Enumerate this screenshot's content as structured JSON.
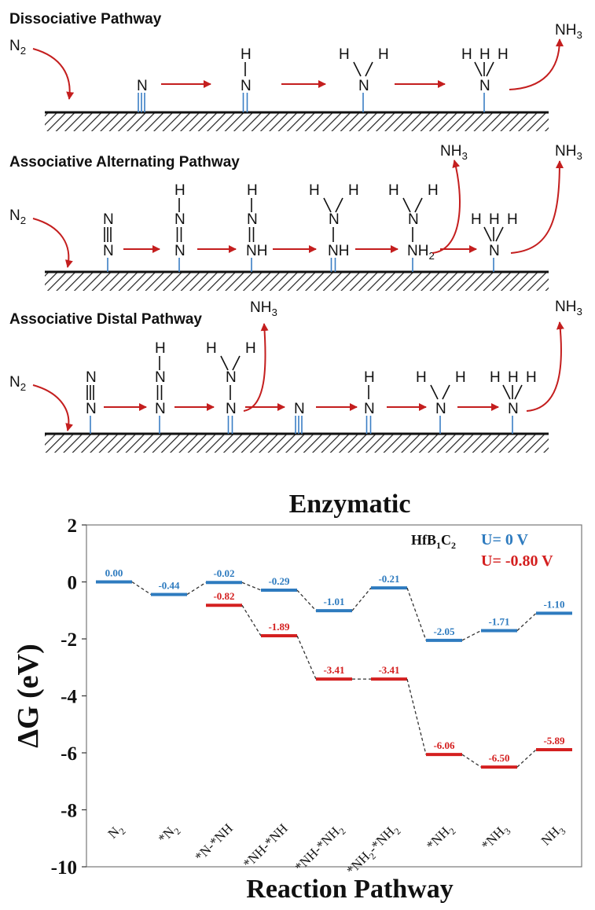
{
  "schemes": [
    {
      "title": "Dissociative Pathway",
      "reactant": "N2",
      "species": [
        {
          "below": "N",
          "bond": "triple",
          "above": []
        },
        {
          "below": "N",
          "bond": "double",
          "above": [
            "H"
          ]
        },
        {
          "below": "N",
          "bond": "single",
          "above": [
            "H",
            "H"
          ]
        },
        {
          "below": "N",
          "bond": "single",
          "above": [
            "H",
            "H",
            "H"
          ]
        }
      ],
      "releases": [
        {
          "after_species": 3,
          "label": "NH3"
        }
      ]
    },
    {
      "title": "Associative Alternating Pathway",
      "reactant": "N2",
      "species": [
        {
          "below": "N",
          "bond": "single",
          "chain": [
            {
              "atom": "N",
              "bond": "triple"
            }
          ],
          "above": []
        },
        {
          "below": "N",
          "bond": "single",
          "chain": [
            {
              "atom": "N",
              "bond": "double"
            }
          ],
          "above": [
            "H"
          ]
        },
        {
          "below": "NH",
          "bond": "single",
          "chain": [
            {
              "atom": "N",
              "bond": "double"
            }
          ],
          "above": [
            "H"
          ]
        },
        {
          "below": "NH",
          "bond": "double",
          "chain": [
            {
              "atom": "N",
              "bond": "single"
            }
          ],
          "above": [
            "H",
            "H"
          ]
        },
        {
          "below": "NH2",
          "bond": "single",
          "chain": [
            {
              "atom": "N",
              "bond": "single"
            }
          ],
          "above": [
            "H",
            "H"
          ]
        },
        {
          "below": "N",
          "bond": "single",
          "above": [
            "H",
            "H",
            "H"
          ]
        }
      ],
      "releases": [
        {
          "after_species": 4,
          "label": "NH3"
        },
        {
          "after_species": 5,
          "label": "NH3"
        }
      ]
    },
    {
      "title": "Associative Distal Pathway",
      "reactant": "N2",
      "species": [
        {
          "below": "N",
          "bond": "single",
          "chain": [
            {
              "atom": "N",
              "bond": "triple"
            }
          ],
          "above": []
        },
        {
          "below": "N",
          "bond": "single",
          "chain": [
            {
              "atom": "N",
              "bond": "double"
            }
          ],
          "above": [
            "H"
          ]
        },
        {
          "below": "N",
          "bond": "double",
          "chain": [
            {
              "atom": "N",
              "bond": "single"
            }
          ],
          "above": [
            "H",
            "H"
          ]
        },
        {
          "below": "N",
          "bond": "triple",
          "above": []
        },
        {
          "below": "N",
          "bond": "double",
          "above": [
            "H"
          ]
        },
        {
          "below": "N",
          "bond": "single",
          "above": [
            "H",
            "H"
          ]
        },
        {
          "below": "N",
          "bond": "single",
          "above": [
            "H",
            "H",
            "H"
          ]
        }
      ],
      "releases": [
        {
          "after_species": 2,
          "label": "NH3"
        },
        {
          "after_species": 6,
          "label": "NH3"
        }
      ]
    }
  ],
  "chart_data": {
    "type": "line",
    "title": "Enzymatic",
    "xlabel": "Reaction Pathway",
    "ylabel": "ΔG (eV)",
    "ylim": [
      -10,
      2
    ],
    "yticks": [
      2,
      0,
      -2,
      -4,
      -6,
      -8,
      -10
    ],
    "categories": [
      "N2",
      "*N2",
      "*N-*NH",
      "*NH-*NH",
      "*NH-*NH2",
      "*NH2-*NH2",
      "*NH2",
      "*NH3",
      "NH3"
    ],
    "material": "HfB1C2",
    "series": [
      {
        "name": "U=  0 V",
        "color": "#2e7bbf",
        "values": [
          0.0,
          -0.44,
          -0.02,
          -0.29,
          -1.01,
          -0.21,
          -2.05,
          -1.71,
          -1.1
        ],
        "labels": [
          "0.00",
          "-0.44",
          "-0.02",
          "-0.29",
          "-1.01",
          "-0.21",
          "-2.05",
          "-1.71",
          "-1.10"
        ]
      },
      {
        "name": "U= -0.80 V",
        "color": "#d42020",
        "values": [
          null,
          null,
          -0.82,
          -1.89,
          -3.41,
          -3.41,
          -6.06,
          -6.5,
          -5.89
        ],
        "labels": [
          null,
          null,
          "-0.82",
          "-1.89",
          "-3.41",
          "-3.41",
          "-6.06",
          "-6.50",
          "-5.89"
        ]
      }
    ],
    "grid": false,
    "legend": "top-right"
  }
}
